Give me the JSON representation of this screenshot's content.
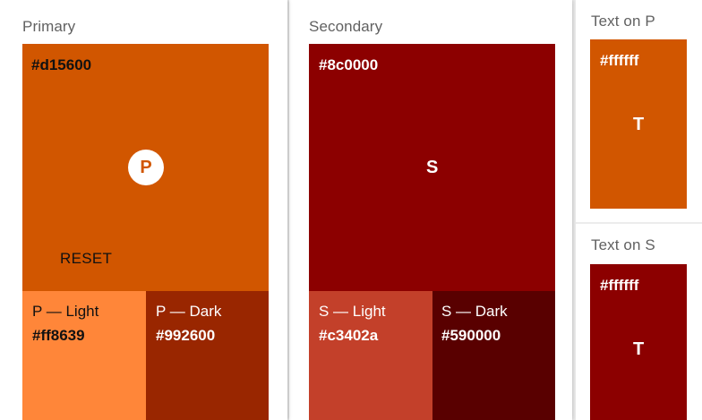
{
  "colors": {
    "primary": "#d15600",
    "primary_light": "#ff8639",
    "primary_dark": "#992600",
    "secondary": "#8c0000",
    "secondary_light": "#c3402a",
    "secondary_dark": "#590000",
    "text_on_primary": "#ffffff",
    "text_on_secondary": "#ffffff"
  },
  "primary": {
    "title": "Primary",
    "hex": "#d15600",
    "badge": "P",
    "reset_label": "RESET",
    "light": {
      "label": "P — Light",
      "hex": "#ff8639"
    },
    "dark": {
      "label": "P — Dark",
      "hex": "#992600"
    }
  },
  "secondary": {
    "title": "Secondary",
    "hex": "#8c0000",
    "badge": "S",
    "light": {
      "label": "S — Light",
      "hex": "#c3402a"
    },
    "dark": {
      "label": "S — Dark",
      "hex": "#590000"
    }
  },
  "text_on_p": {
    "title": "Text on P",
    "hex": "#ffffff",
    "letter": "T"
  },
  "text_on_s": {
    "title": "Text on S",
    "hex": "#ffffff",
    "letter": "T"
  }
}
